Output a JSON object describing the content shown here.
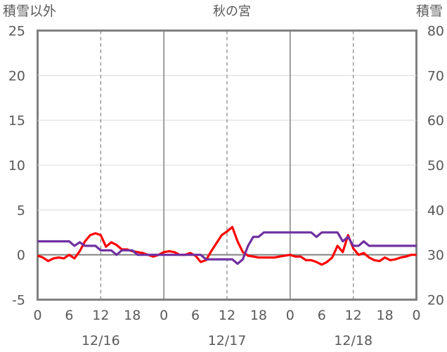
{
  "chart_data": {
    "type": "line",
    "title": "秋の宮",
    "left_axis": {
      "label": "積雪以外",
      "range": [
        -5,
        25
      ],
      "ticks": [
        25,
        20,
        15,
        10,
        5,
        0,
        -5
      ],
      "tick_labels": [
        "25",
        "20",
        "15",
        "10",
        "5",
        "0",
        "-5"
      ]
    },
    "right_axis": {
      "label": "積雪",
      "range": [
        20,
        80
      ],
      "ticks": [
        80,
        70,
        60,
        50,
        40,
        30,
        20
      ],
      "tick_labels": [
        "80",
        "70",
        "60",
        "50",
        "40",
        "30",
        "20"
      ]
    },
    "x_axis": {
      "range_hours": [
        0,
        72
      ],
      "tick_hours": [
        0,
        6,
        12,
        18,
        24,
        30,
        36,
        42,
        48,
        54,
        60,
        66,
        72
      ],
      "tick_labels": [
        "0",
        "6",
        "12",
        "18",
        "0",
        "6",
        "12",
        "18",
        "0",
        "6",
        "12",
        "18",
        "0"
      ],
      "day_labels": [
        {
          "hour": 12,
          "label": "12/16"
        },
        {
          "hour": 36,
          "label": "12/17"
        },
        {
          "hour": 60,
          "label": "12/18"
        }
      ],
      "solid_gridlines_hours": [
        24,
        48
      ],
      "dashed_gridlines_hours": [
        12,
        36,
        60
      ]
    },
    "grid": {
      "horizontal": true,
      "vertical": true
    },
    "series": [
      {
        "color": "#ff0000",
        "axis": "left",
        "x": [
          0,
          1,
          2,
          3,
          4,
          5,
          6,
          7,
          8,
          9,
          10,
          11,
          12,
          13,
          14,
          15,
          16,
          17,
          18,
          19,
          20,
          21,
          22,
          23,
          24,
          25,
          26,
          27,
          28,
          29,
          30,
          31,
          32,
          33,
          34,
          35,
          36,
          37,
          38,
          39,
          40,
          41,
          42,
          43,
          44,
          45,
          46,
          47,
          48,
          49,
          50,
          51,
          52,
          53,
          54,
          55,
          56,
          57,
          58,
          59,
          60,
          61,
          62,
          63,
          64,
          65,
          66,
          67,
          68,
          69,
          70,
          71,
          72
        ],
        "values": [
          -0.1,
          -0.3,
          -0.7,
          -0.4,
          -0.3,
          -0.4,
          0.0,
          -0.4,
          0.4,
          1.5,
          2.2,
          2.4,
          2.2,
          0.9,
          1.4,
          1.1,
          0.6,
          0.6,
          0.4,
          0.3,
          0.2,
          0.0,
          -0.2,
          0.0,
          0.3,
          0.4,
          0.3,
          0.0,
          0.0,
          0.2,
          -0.1,
          -0.8,
          -0.6,
          0.4,
          1.3,
          2.2,
          2.6,
          3.1,
          1.5,
          0.3,
          -0.1,
          -0.2,
          -0.3,
          -0.3,
          -0.3,
          -0.3,
          -0.2,
          -0.1,
          0.0,
          -0.2,
          -0.2,
          -0.6,
          -0.6,
          -0.8,
          -1.1,
          -0.8,
          -0.3,
          1.0,
          0.3,
          2.2,
          0.7,
          0.0,
          0.2,
          -0.3,
          -0.6,
          -0.7,
          -0.3,
          -0.6,
          -0.5,
          -0.3,
          -0.2,
          0.0,
          0.0
        ]
      },
      {
        "color": "#7030a0",
        "axis": "left",
        "x": [
          0,
          1,
          2,
          3,
          4,
          5,
          6,
          7,
          8,
          9,
          10,
          11,
          12,
          13,
          14,
          15,
          16,
          17,
          18,
          19,
          20,
          21,
          22,
          23,
          24,
          25,
          26,
          27,
          28,
          29,
          30,
          31,
          32,
          33,
          34,
          35,
          36,
          37,
          38,
          39,
          40,
          41,
          42,
          43,
          44,
          45,
          46,
          47,
          48,
          49,
          50,
          51,
          52,
          53,
          54,
          55,
          56,
          57,
          58,
          59,
          60,
          61,
          62,
          63,
          64,
          65,
          66,
          67,
          68,
          69,
          70,
          71,
          72
        ],
        "values": [
          1.5,
          1.5,
          1.5,
          1.5,
          1.5,
          1.5,
          1.5,
          1.0,
          1.4,
          1.0,
          1.0,
          1.0,
          0.5,
          0.5,
          0.5,
          0.0,
          0.5,
          0.5,
          0.5,
          0.0,
          0.0,
          0.0,
          0.0,
          0.0,
          0.0,
          0.0,
          0.0,
          0.0,
          0.0,
          0.0,
          0.0,
          0.0,
          -0.5,
          -0.5,
          -0.5,
          -0.5,
          -0.5,
          -0.5,
          -1.0,
          -0.5,
          1.0,
          2.0,
          2.0,
          2.5,
          2.5,
          2.5,
          2.5,
          2.5,
          2.5,
          2.5,
          2.5,
          2.5,
          2.5,
          2.0,
          2.5,
          2.5,
          2.5,
          2.5,
          1.5,
          2.0,
          1.0,
          1.0,
          1.5,
          1.0,
          1.0,
          1.0,
          1.0,
          1.0,
          1.0,
          1.0,
          1.0,
          1.0,
          1.0
        ]
      }
    ]
  }
}
